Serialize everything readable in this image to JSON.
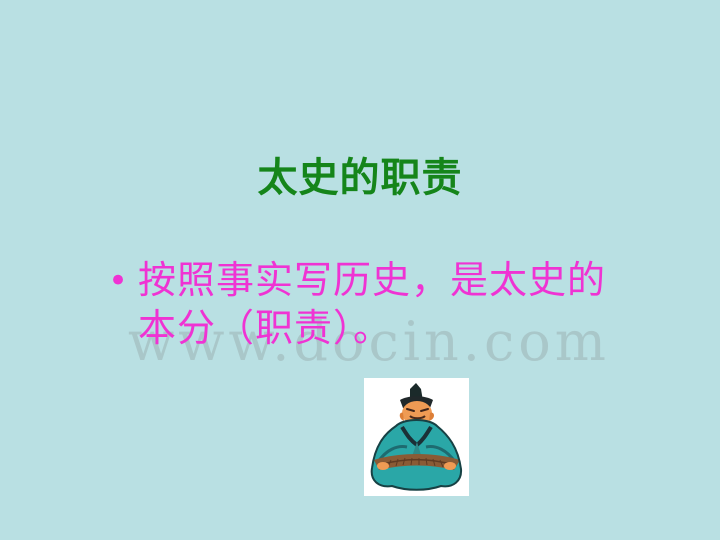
{
  "slide": {
    "title": "太史的职责",
    "bullet_symbol": "•",
    "bullet_text": "按照事实写历史，是太史的本分（职责）。",
    "watermark": "www.docin.com"
  },
  "figure": {
    "icon": "historian-figure-icon"
  },
  "colors": {
    "background": "#b9e0e3",
    "title": "#15851a",
    "bullet": "#ef33d3",
    "robe": "#27a8a6"
  }
}
